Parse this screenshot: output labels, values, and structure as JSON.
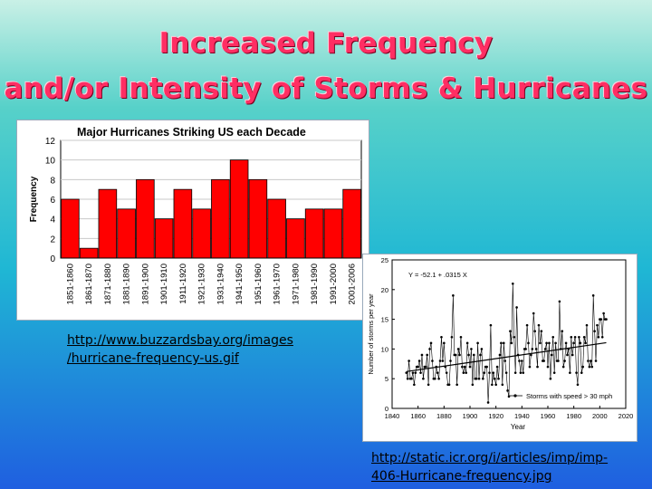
{
  "slide": {
    "title_line1": "Increased Frequency",
    "title_line2": "and/or Intensity of Storms & Hurricanes",
    "link1_line1": "http://www.buzzardsbay.org/images",
    "link1_line2": "/hurricane-frequency-us.gif",
    "link2_line1": "http://static.icr.org/i/articles/imp/imp-",
    "link2_line2": "406-Hurricane-frequency.jpg"
  },
  "chart_data": [
    {
      "type": "bar",
      "title": "Major Hurricanes Striking US each Decade",
      "ylabel": "Frequency",
      "xlabel": "",
      "ylim": [
        0,
        12
      ],
      "yticks": [
        0,
        2,
        4,
        6,
        8,
        10,
        12
      ],
      "bar_color": "#ff0000",
      "grid": true,
      "categories": [
        "1851-1860",
        "1861-1870",
        "1871-1880",
        "1881-1890",
        "1891-1900",
        "1901-1910",
        "1911-1920",
        "1921-1930",
        "1931-1940",
        "1941-1950",
        "1951-1960",
        "1961-1970",
        "1971-1980",
        "1981-1990",
        "1991-2000",
        "2001-2006"
      ],
      "values": [
        6,
        1,
        7,
        5,
        8,
        4,
        7,
        5,
        8,
        10,
        8,
        6,
        4,
        5,
        5,
        7
      ]
    },
    {
      "type": "line",
      "xlabel": "Year",
      "ylabel": "Number of storms per year",
      "xlim": [
        1840,
        2020
      ],
      "ylim": [
        0,
        25
      ],
      "xticks": [
        1840,
        1860,
        1880,
        1900,
        1920,
        1940,
        1960,
        1980,
        2000,
        2020
      ],
      "yticks": [
        0,
        5,
        10,
        15,
        20,
        25
      ],
      "equation": "Y = -52.1 + .0315 X",
      "legend": "Storms with speed > 30 mph",
      "legend_position": "bottom-right",
      "trend": {
        "intercept": -52.1,
        "slope": 0.0315
      },
      "series": [
        {
          "name": "Storms with speed > 30 mph",
          "x": [
            1851,
            1852,
            1853,
            1854,
            1855,
            1856,
            1857,
            1858,
            1859,
            1860,
            1861,
            1862,
            1863,
            1864,
            1865,
            1866,
            1867,
            1868,
            1869,
            1870,
            1871,
            1872,
            1873,
            1874,
            1875,
            1876,
            1877,
            1878,
            1879,
            1880,
            1881,
            1882,
            1883,
            1884,
            1885,
            1886,
            1887,
            1888,
            1889,
            1890,
            1891,
            1892,
            1893,
            1894,
            1895,
            1896,
            1897,
            1898,
            1899,
            1900,
            1901,
            1902,
            1903,
            1904,
            1905,
            1906,
            1907,
            1908,
            1909,
            1910,
            1911,
            1912,
            1913,
            1914,
            1915,
            1916,
            1917,
            1918,
            1919,
            1920,
            1921,
            1922,
            1923,
            1924,
            1925,
            1926,
            1927,
            1928,
            1929,
            1930,
            1931,
            1932,
            1933,
            1934,
            1935,
            1936,
            1937,
            1938,
            1939,
            1940,
            1941,
            1942,
            1943,
            1944,
            1945,
            1946,
            1947,
            1948,
            1949,
            1950,
            1951,
            1952,
            1953,
            1954,
            1955,
            1956,
            1957,
            1958,
            1959,
            1960,
            1961,
            1962,
            1963,
            1964,
            1965,
            1966,
            1967,
            1968,
            1969,
            1970,
            1971,
            1972,
            1973,
            1974,
            1975,
            1976,
            1977,
            1978,
            1979,
            1980,
            1981,
            1982,
            1983,
            1984,
            1985,
            1986,
            1987,
            1988,
            1989,
            1990,
            1991,
            1992,
            1993,
            1994,
            1995,
            1996,
            1997,
            1998,
            1999,
            2000,
            2001,
            2002,
            2003,
            2004,
            2005
          ],
          "y": [
            6,
            5,
            8,
            5,
            5,
            6,
            4,
            6,
            7,
            7,
            8,
            6,
            9,
            5,
            7,
            7,
            9,
            4,
            10,
            11,
            8,
            5,
            5,
            7,
            6,
            5,
            8,
            12,
            8,
            11,
            7,
            6,
            4,
            4,
            8,
            12,
            19,
            9,
            9,
            4,
            10,
            9,
            12,
            7,
            6,
            7,
            6,
            11,
            9,
            7,
            10,
            4,
            9,
            5,
            5,
            11,
            5,
            9,
            10,
            5,
            6,
            7,
            7,
            1,
            6,
            14,
            4,
            6,
            5,
            4,
            7,
            5,
            9,
            11,
            4,
            11,
            8,
            6,
            3,
            2,
            13,
            11,
            21,
            12,
            6,
            17,
            9,
            8,
            6,
            8,
            6,
            10,
            10,
            14,
            11,
            7,
            9,
            10,
            16,
            13,
            10,
            7,
            14,
            11,
            13,
            8,
            8,
            10,
            11,
            7,
            11,
            5,
            9,
            12,
            6,
            11,
            8,
            8,
            18,
            10,
            13,
            7,
            8,
            11,
            9,
            10,
            6,
            12,
            9,
            11,
            12,
            6,
            4,
            12,
            11,
            6,
            7,
            12,
            11,
            14,
            8,
            7,
            8,
            7,
            19,
            13,
            8,
            14,
            12,
            15,
            15,
            12,
            16,
            15,
            15
          ]
        }
      ]
    }
  ]
}
